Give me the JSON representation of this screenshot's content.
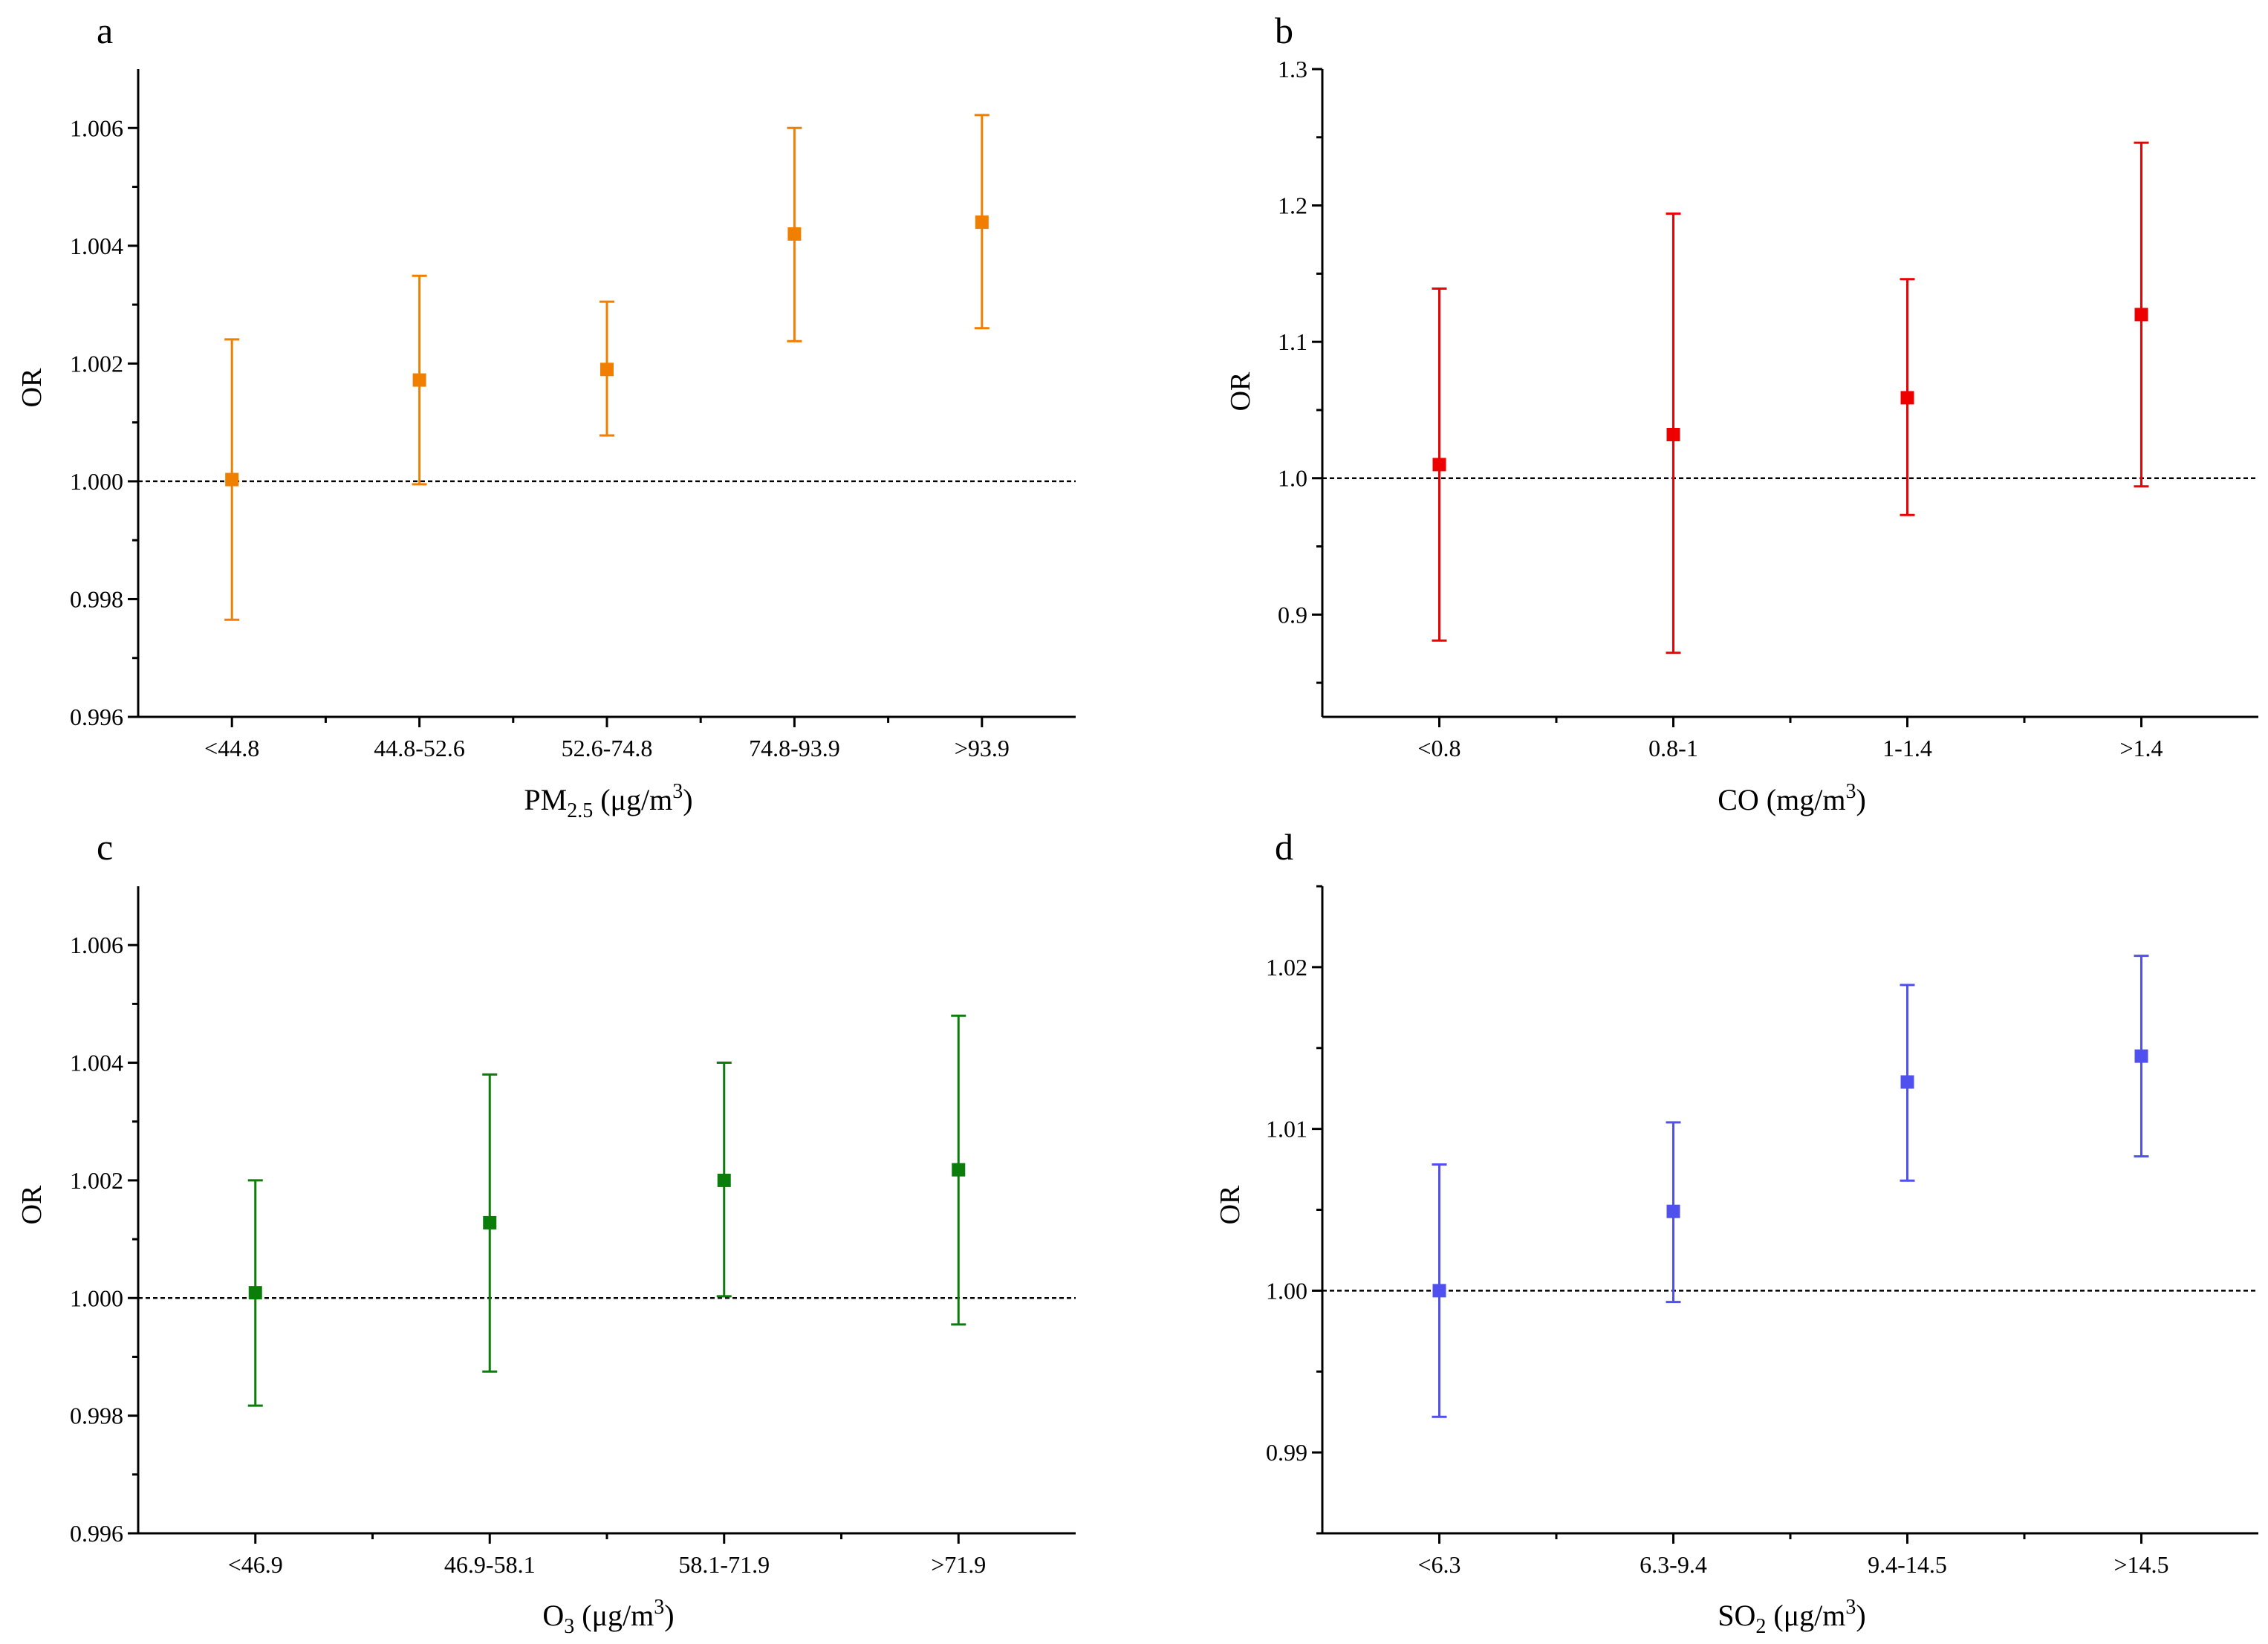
{
  "chart_data": [
    {
      "type": "scatter",
      "panel": "a",
      "title": "",
      "xlabel": {
        "main": "PM",
        "sub": "2.5",
        "unit_prefix": "(μg/m",
        "unit_sup": "3",
        "unit_suffix": ")"
      },
      "ylabel": "OR",
      "color": "#f07f00",
      "reference_line": 1.0,
      "ylim": [
        0.996,
        1.007
      ],
      "yticks": [
        0.996,
        0.998,
        1.0,
        1.002,
        1.004,
        1.006
      ],
      "ytick_labels": [
        "0.996",
        "0.998",
        "1.000",
        "1.002",
        "1.004",
        "1.006"
      ],
      "categories": [
        "<44.8",
        "44.8-52.6",
        "52.6-74.8",
        "74.8-93.9",
        ">93.9"
      ],
      "or": [
        1.00003,
        1.00172,
        1.0019,
        1.0042,
        1.0044
      ],
      "lower": [
        0.99765,
        0.99995,
        1.00078,
        1.00238,
        1.0026
      ],
      "upper": [
        1.00241,
        1.00349,
        1.00305,
        1.006,
        1.00622
      ]
    },
    {
      "type": "scatter",
      "panel": "b",
      "title": "",
      "xlabel": {
        "main": "CO",
        "sub": "",
        "unit_prefix": "(mg/m",
        "unit_sup": "3",
        "unit_suffix": ")"
      },
      "ylabel": "OR",
      "color": "#ee0000",
      "reference_line": 1.0,
      "ylim": [
        0.825,
        1.3
      ],
      "yticks": [
        0.9,
        1.0,
        1.1,
        1.2,
        1.3
      ],
      "ytick_labels": [
        "0.9",
        "1.0",
        "1.1",
        "1.2",
        "1.3"
      ],
      "categories": [
        "<0.8",
        "0.8-1",
        "1-1.4",
        ">1.4"
      ],
      "or": [
        1.01,
        1.032,
        1.059,
        1.12
      ],
      "lower": [
        0.881,
        0.872,
        0.973,
        0.994
      ],
      "upper": [
        1.139,
        1.194,
        1.146,
        1.246
      ]
    },
    {
      "type": "scatter",
      "panel": "c",
      "title": "",
      "xlabel": {
        "main": "O",
        "sub": "3",
        "unit_prefix": "(μg/m",
        "unit_sup": "3",
        "unit_suffix": ")"
      },
      "ylabel": "OR",
      "color": "#0a7d0a",
      "reference_line": 1.0,
      "ylim": [
        0.996,
        1.007
      ],
      "yticks": [
        0.996,
        0.998,
        1.0,
        1.002,
        1.004,
        1.006
      ],
      "ytick_labels": [
        "0.996",
        "0.998",
        "1.000",
        "1.002",
        "1.004",
        "1.006"
      ],
      "categories": [
        "<46.9",
        "46.9-58.1",
        "58.1-71.9",
        ">71.9"
      ],
      "or": [
        1.00009,
        1.00128,
        1.002,
        1.00218
      ],
      "lower": [
        0.99817,
        0.99875,
        1.00003,
        0.99955
      ],
      "upper": [
        1.002,
        1.0038,
        1.004,
        1.0048
      ]
    },
    {
      "type": "scatter",
      "panel": "d",
      "title": "",
      "xlabel": {
        "main": "SO",
        "sub": "2",
        "unit_prefix": "(μg/m",
        "unit_sup": "3",
        "unit_suffix": ")"
      },
      "ylabel": "OR",
      "color": "#5050ee",
      "reference_line": 1.0,
      "ylim": [
        0.985,
        1.025
      ],
      "yticks": [
        0.99,
        1.0,
        1.01,
        1.02
      ],
      "ytick_labels": [
        "0.99",
        "1.00",
        "1.01",
        "1.02"
      ],
      "categories": [
        "<6.3",
        "6.3-9.4",
        "9.4-14.5",
        ">14.5"
      ],
      "or": [
        1.0,
        1.0049,
        1.0129,
        1.0145
      ],
      "lower": [
        0.9922,
        0.9993,
        1.0068,
        1.0083
      ],
      "upper": [
        1.0078,
        1.0104,
        1.0189,
        1.0207
      ]
    }
  ]
}
